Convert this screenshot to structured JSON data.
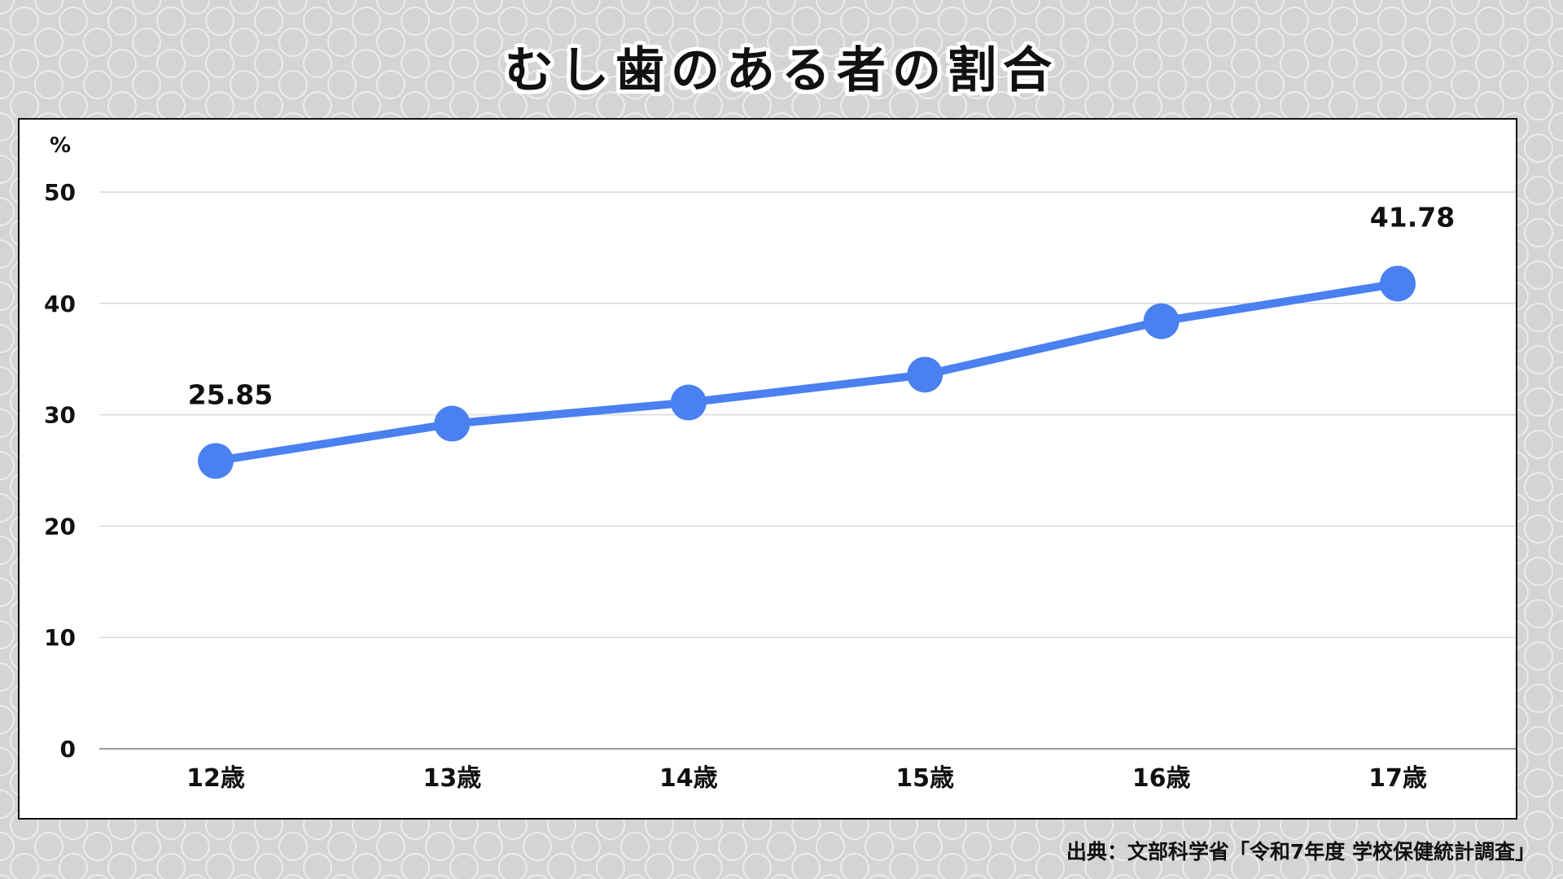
{
  "title": "むし歯のある者の割合",
  "source": "出典：文部科学省「令和7年度 学校保健統計調査」",
  "chart_data": {
    "type": "line",
    "title": "むし歯のある者の割合",
    "ylabel": "%",
    "xlabel": "",
    "categories": [
      "12歳",
      "13歳",
      "14歳",
      "15歳",
      "16歳",
      "17歳"
    ],
    "series": [
      {
        "values": [
          25.85,
          29.2,
          31.1,
          33.6,
          38.4,
          41.78
        ],
        "color": "#4a80f0"
      }
    ],
    "data_labels": [
      {
        "index": 0,
        "text": "25.85"
      },
      {
        "index": 5,
        "text": "41.78"
      }
    ],
    "ylim": [
      0,
      50
    ],
    "yticks": [
      0,
      10,
      20,
      30,
      40,
      50
    ],
    "grid": true,
    "legend": "none"
  },
  "colors": {
    "line": "#4a80f0",
    "grid": "#d9d9d9",
    "axis": "#9a9a9a",
    "text": "#111111"
  }
}
